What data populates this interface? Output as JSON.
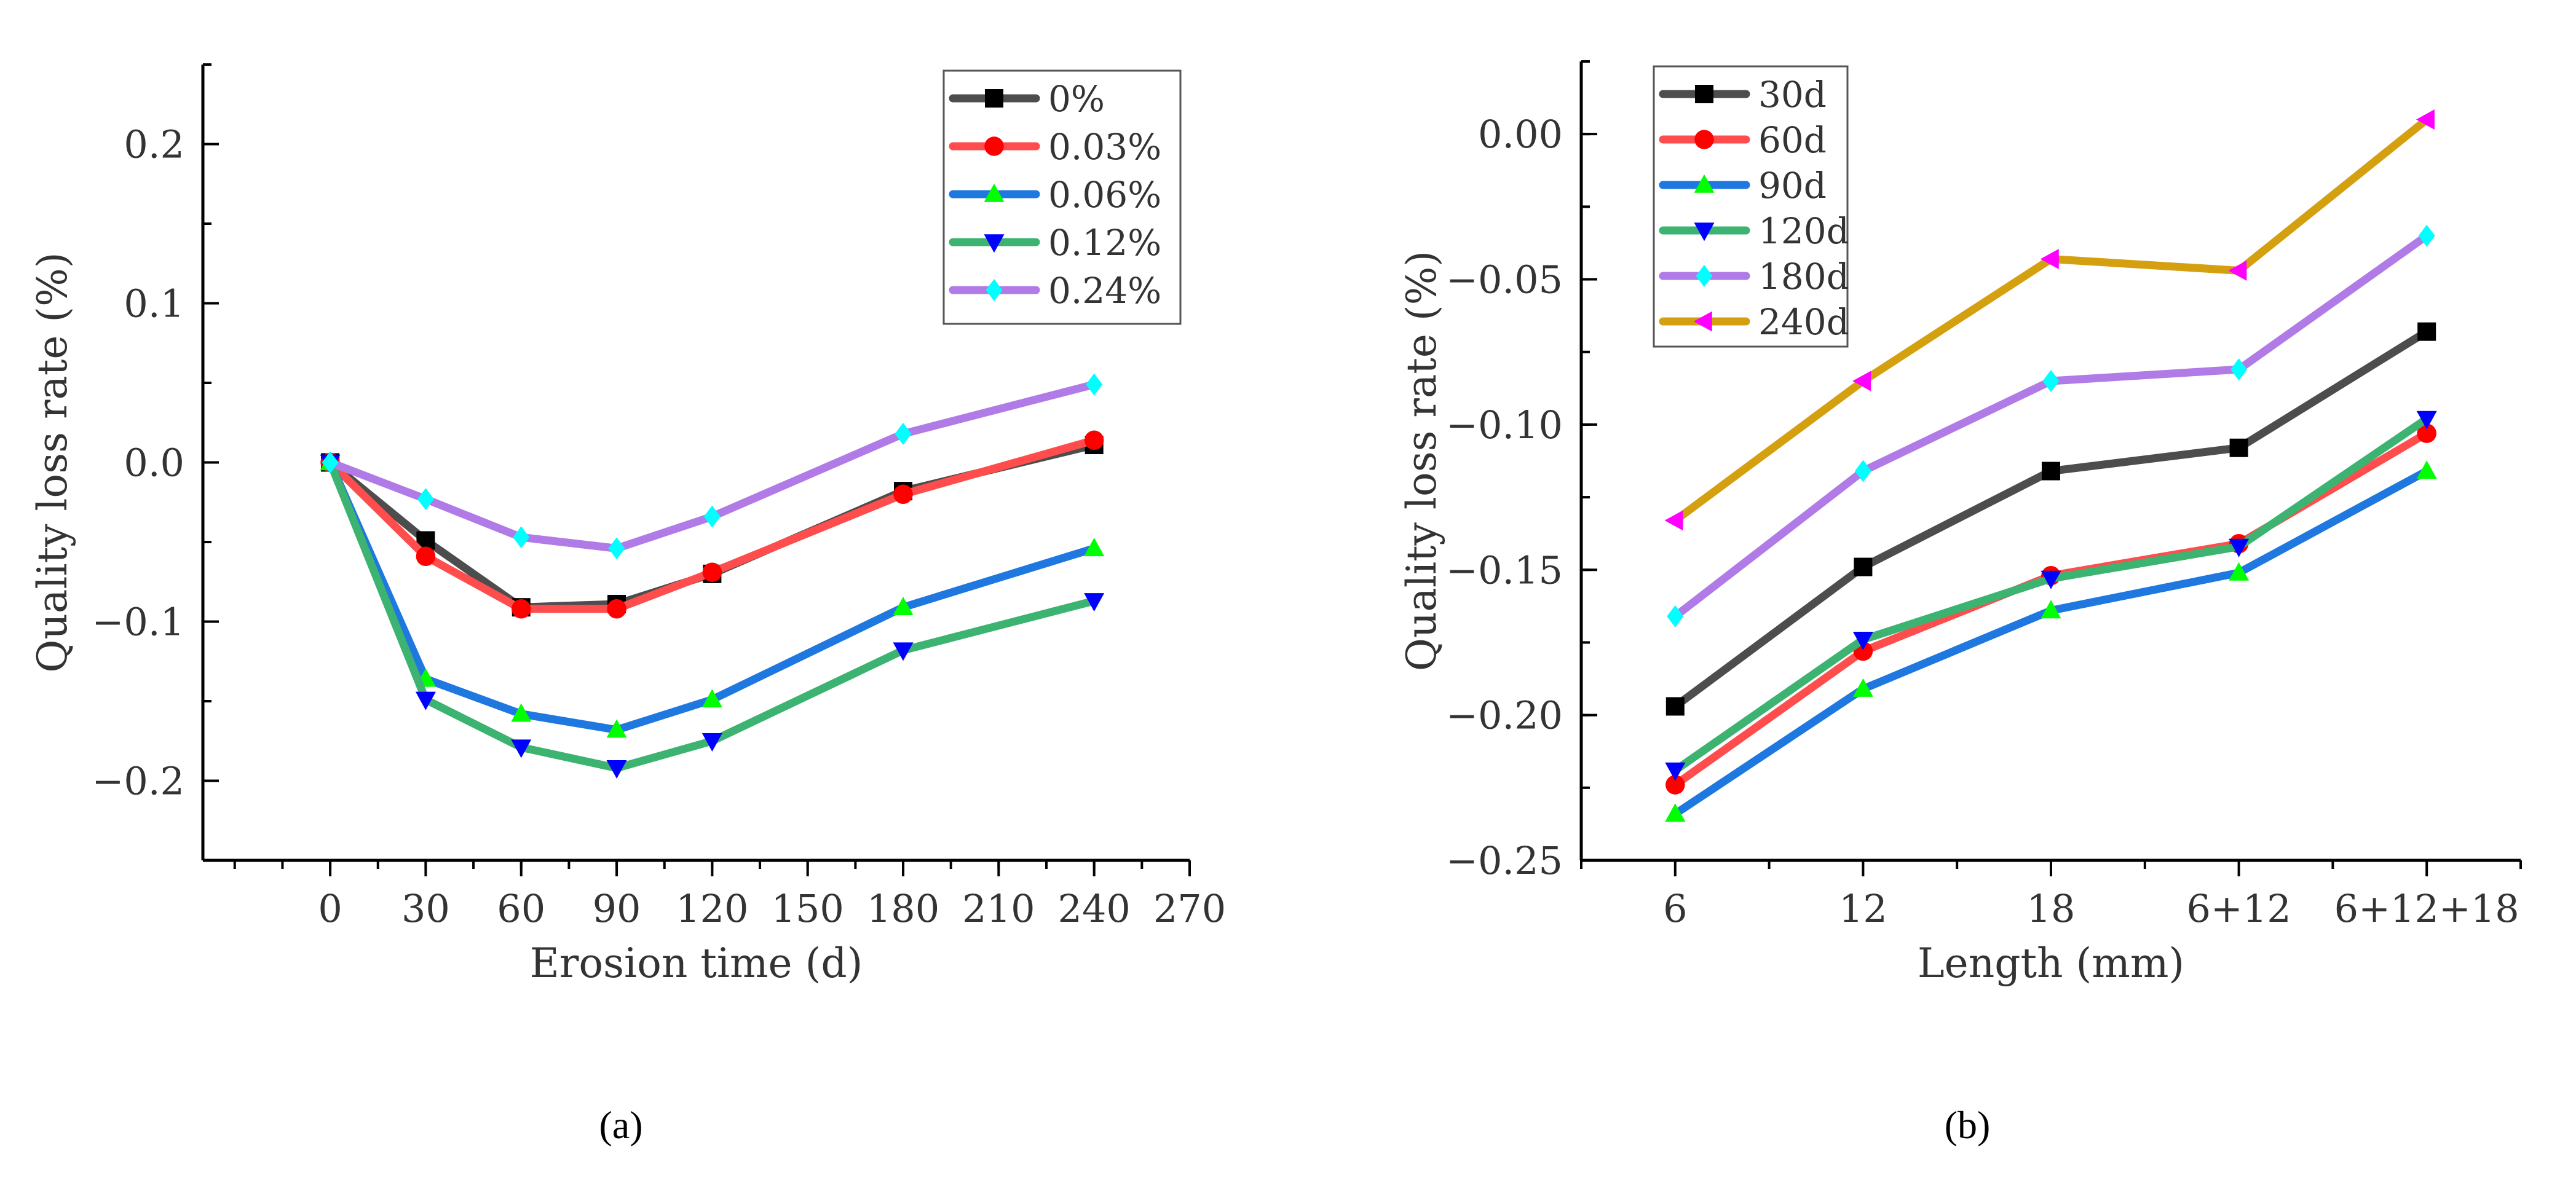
{
  "charts": [
    {
      "type": "line",
      "panel_label": "(a)",
      "xlabel": "Erosion time (d)",
      "ylabel": "Quality loss rate (%)",
      "xlim": [
        -40,
        270
      ],
      "ylim": [
        -0.25,
        0.25
      ],
      "xticks": [
        0,
        30,
        60,
        90,
        120,
        150,
        180,
        210,
        240,
        270
      ],
      "xtick_labels": [
        "0",
        "30",
        "60",
        "90",
        "120",
        "150",
        "180",
        "210",
        "240",
        "270"
      ],
      "yticks": [
        -0.2,
        -0.1,
        0.0,
        0.1,
        0.2
      ],
      "ytick_labels": [
        "−0.2",
        "−0.1",
        "0.0",
        "0.1",
        "0.2"
      ],
      "x": [
        0,
        30,
        60,
        90,
        120,
        180,
        240
      ],
      "legend_position": "top-right",
      "series": [
        {
          "name": "0%",
          "color": "#4d4d4d",
          "marker": "square",
          "marker_color": "#000000",
          "values": [
            0.0,
            -0.049,
            -0.091,
            -0.089,
            -0.07,
            -0.018,
            0.011
          ]
        },
        {
          "name": "0.03%",
          "color": "#ff4d4d",
          "marker": "circle",
          "marker_color": "#ff0000",
          "values": [
            0.0,
            -0.059,
            -0.092,
            -0.092,
            -0.069,
            -0.02,
            0.014
          ]
        },
        {
          "name": "0.06%",
          "color": "#1f77e0",
          "marker": "triangle-up",
          "marker_color": "#00ff00",
          "values": [
            0.0,
            -0.136,
            -0.158,
            -0.168,
            -0.149,
            -0.091,
            -0.054
          ]
        },
        {
          "name": "0.12%",
          "color": "#3cb371",
          "marker": "triangle-down",
          "marker_color": "#0000ff",
          "values": [
            0.0,
            -0.149,
            -0.179,
            -0.192,
            -0.175,
            -0.118,
            -0.087
          ]
        },
        {
          "name": "0.24%",
          "color": "#b07be6",
          "marker": "diamond",
          "marker_color": "#00ffff",
          "values": [
            0.0,
            -0.023,
            -0.047,
            -0.054,
            -0.034,
            0.018,
            0.049
          ]
        }
      ]
    },
    {
      "type": "line",
      "panel_label": "(b)",
      "xlabel": "Length (mm)",
      "ylabel": "Quality loss rate (%)",
      "xlim": [
        -0.5,
        4.5
      ],
      "ylim": [
        -0.25,
        0.025
      ],
      "categories": [
        "6",
        "12",
        "18",
        "6+12",
        "6+12+18"
      ],
      "yticks": [
        -0.25,
        -0.2,
        -0.15,
        -0.1,
        -0.05,
        0.0
      ],
      "ytick_labels": [
        "−0.25",
        "−0.20",
        "−0.15",
        "−0.10",
        "−0.05",
        "0.00"
      ],
      "legend_position": "top-left",
      "series": [
        {
          "name": "30d",
          "color": "#4d4d4d",
          "marker": "square",
          "marker_color": "#000000",
          "values": [
            -0.197,
            -0.149,
            -0.116,
            -0.108,
            -0.068
          ]
        },
        {
          "name": "60d",
          "color": "#ff4d4d",
          "marker": "circle",
          "marker_color": "#ff0000",
          "values": [
            -0.224,
            -0.178,
            -0.152,
            -0.141,
            -0.103
          ]
        },
        {
          "name": "90d",
          "color": "#1f77e0",
          "marker": "triangle-up",
          "marker_color": "#00ff00",
          "values": [
            -0.234,
            -0.191,
            -0.164,
            -0.151,
            -0.116
          ]
        },
        {
          "name": "120d",
          "color": "#3cb371",
          "marker": "triangle-down",
          "marker_color": "#0000ff",
          "values": [
            -0.219,
            -0.174,
            -0.153,
            -0.142,
            -0.098
          ]
        },
        {
          "name": "180d",
          "color": "#b07be6",
          "marker": "diamond",
          "marker_color": "#00ffff",
          "values": [
            -0.166,
            -0.116,
            -0.085,
            -0.081,
            -0.035
          ]
        },
        {
          "name": "240d",
          "color": "#d4a010",
          "marker": "triangle-left",
          "marker_color": "#ff00ff",
          "values": [
            -0.133,
            -0.085,
            -0.043,
            -0.047,
            0.005
          ]
        }
      ]
    }
  ]
}
